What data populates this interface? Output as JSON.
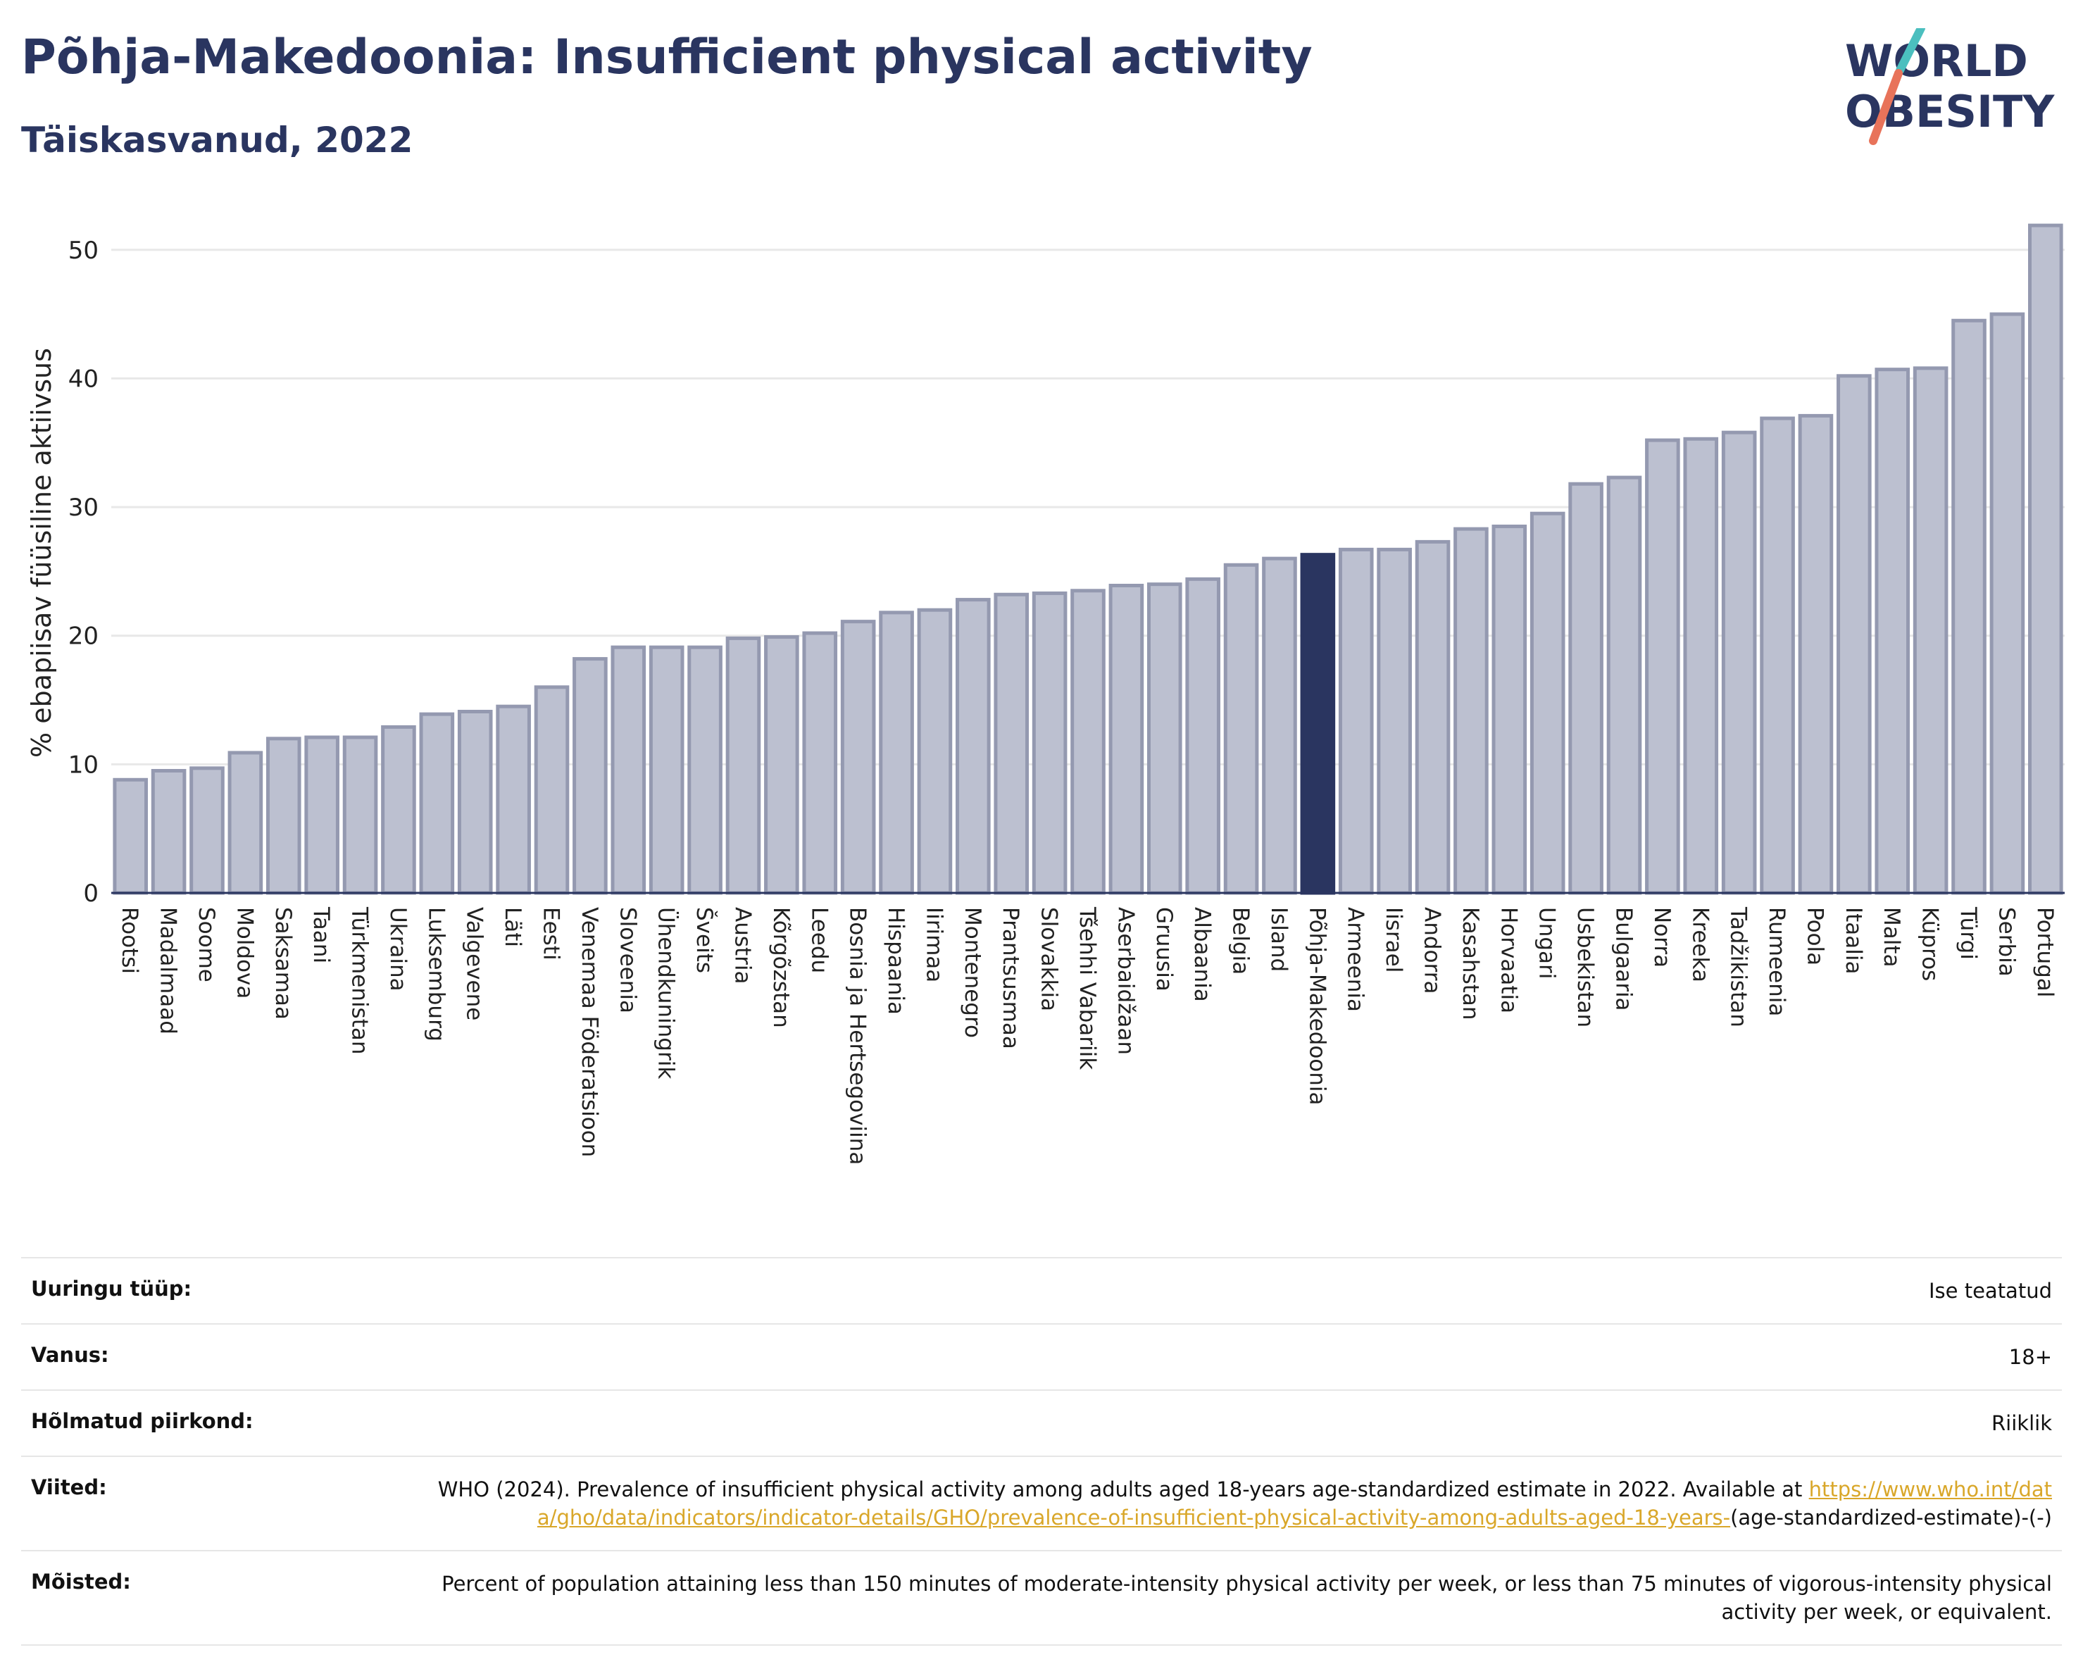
{
  "title": "Põhja-Makedoonia: Insufficient physical activity",
  "subtitle": "Täiskasvanud, 2022",
  "logo": {
    "line1": "WORLD",
    "line2": "OBESITY",
    "accent_colors": [
      "#4bbfbf",
      "#e8735a"
    ]
  },
  "colors": {
    "bar": "#bcc0d0",
    "bar_edge": "#9499b0",
    "highlight": "#2a3560",
    "grid": "#e8e8e8"
  },
  "chart_data": {
    "type": "bar",
    "categories": [
      "Rootsi",
      "Madalmaad",
      "Soome",
      "Moldova",
      "Saksamaa",
      "Taani",
      "Türkmenistan",
      "Ukraina",
      "Luksemburg",
      "Valgevene",
      "Läti",
      "Eesti",
      "Venemaa Föderatsioon",
      "Sloveenia",
      "Ühendkuningrik",
      "Šveits",
      "Austria",
      "Kõrgõzstan",
      "Leedu",
      "Bosnia ja Hertsegoviina",
      "Hispaania",
      "Iirimaa",
      "Montenegro",
      "Prantsusmaa",
      "Slovakkia",
      "Tšehhi Vabariik",
      "Aserbaidžaan",
      "Gruusia",
      "Albaania",
      "Belgia",
      "Island",
      "Põhja-Makedoonia",
      "Armeenia",
      "Iisrael",
      "Andorra",
      "Kasahstan",
      "Horvaatia",
      "Ungari",
      "Usbekistan",
      "Bulgaaria",
      "Norra",
      "Kreeka",
      "Tadžikistan",
      "Rumeenia",
      "Poola",
      "Itaalia",
      "Malta",
      "Küpros",
      "Türgi",
      "Serbia",
      "Portugal"
    ],
    "values": [
      8.8,
      9.5,
      9.7,
      10.9,
      12.0,
      12.1,
      12.1,
      12.9,
      13.9,
      14.1,
      14.5,
      16.0,
      18.2,
      19.1,
      19.1,
      19.1,
      19.8,
      19.9,
      20.2,
      21.1,
      21.8,
      22.0,
      22.8,
      23.2,
      23.3,
      23.5,
      23.9,
      24.0,
      24.4,
      25.5,
      26.0,
      26.3,
      26.7,
      26.7,
      27.3,
      28.3,
      28.5,
      29.5,
      31.8,
      32.3,
      35.2,
      35.3,
      35.8,
      36.9,
      37.1,
      40.2,
      40.7,
      40.8,
      44.5,
      45.0,
      51.9
    ],
    "highlight": "Põhja-Makedoonia",
    "ylabel": "% ebapiisav füüsiline aktiivsus",
    "xlabel": "",
    "ylim": [
      0,
      53
    ],
    "yticks": [
      0,
      10,
      20,
      30,
      40,
      50
    ],
    "grid": true
  },
  "meta": {
    "survey_type": {
      "label": "Uuringu tüüp:",
      "value": "Ise teatatud"
    },
    "age": {
      "label": "Vanus:",
      "value": "18+"
    },
    "region": {
      "label": "Hõlmatud piirkond:",
      "value": "Riiklik"
    },
    "references": {
      "label": "Viited:",
      "text": "WHO (2024). Prevalence of insufficient physical activity among adults aged 18-years age-standardized estimate in 2022. Available at",
      "link": "https://www.who.int/data/gho/data/indicators/indicator-details/GHO/prevalence-of-insufficient-physical-activity-among-adults-aged-18-years-",
      "suffix": "(age-standardized-estimate)-(-)"
    },
    "definitions": {
      "label": "Mõisted:",
      "value": "Percent of population attaining less than 150 minutes of moderate-intensity physical activity per week, or less than 75 minutes of vigorous-intensity physical activity per week, or equivalent."
    }
  }
}
